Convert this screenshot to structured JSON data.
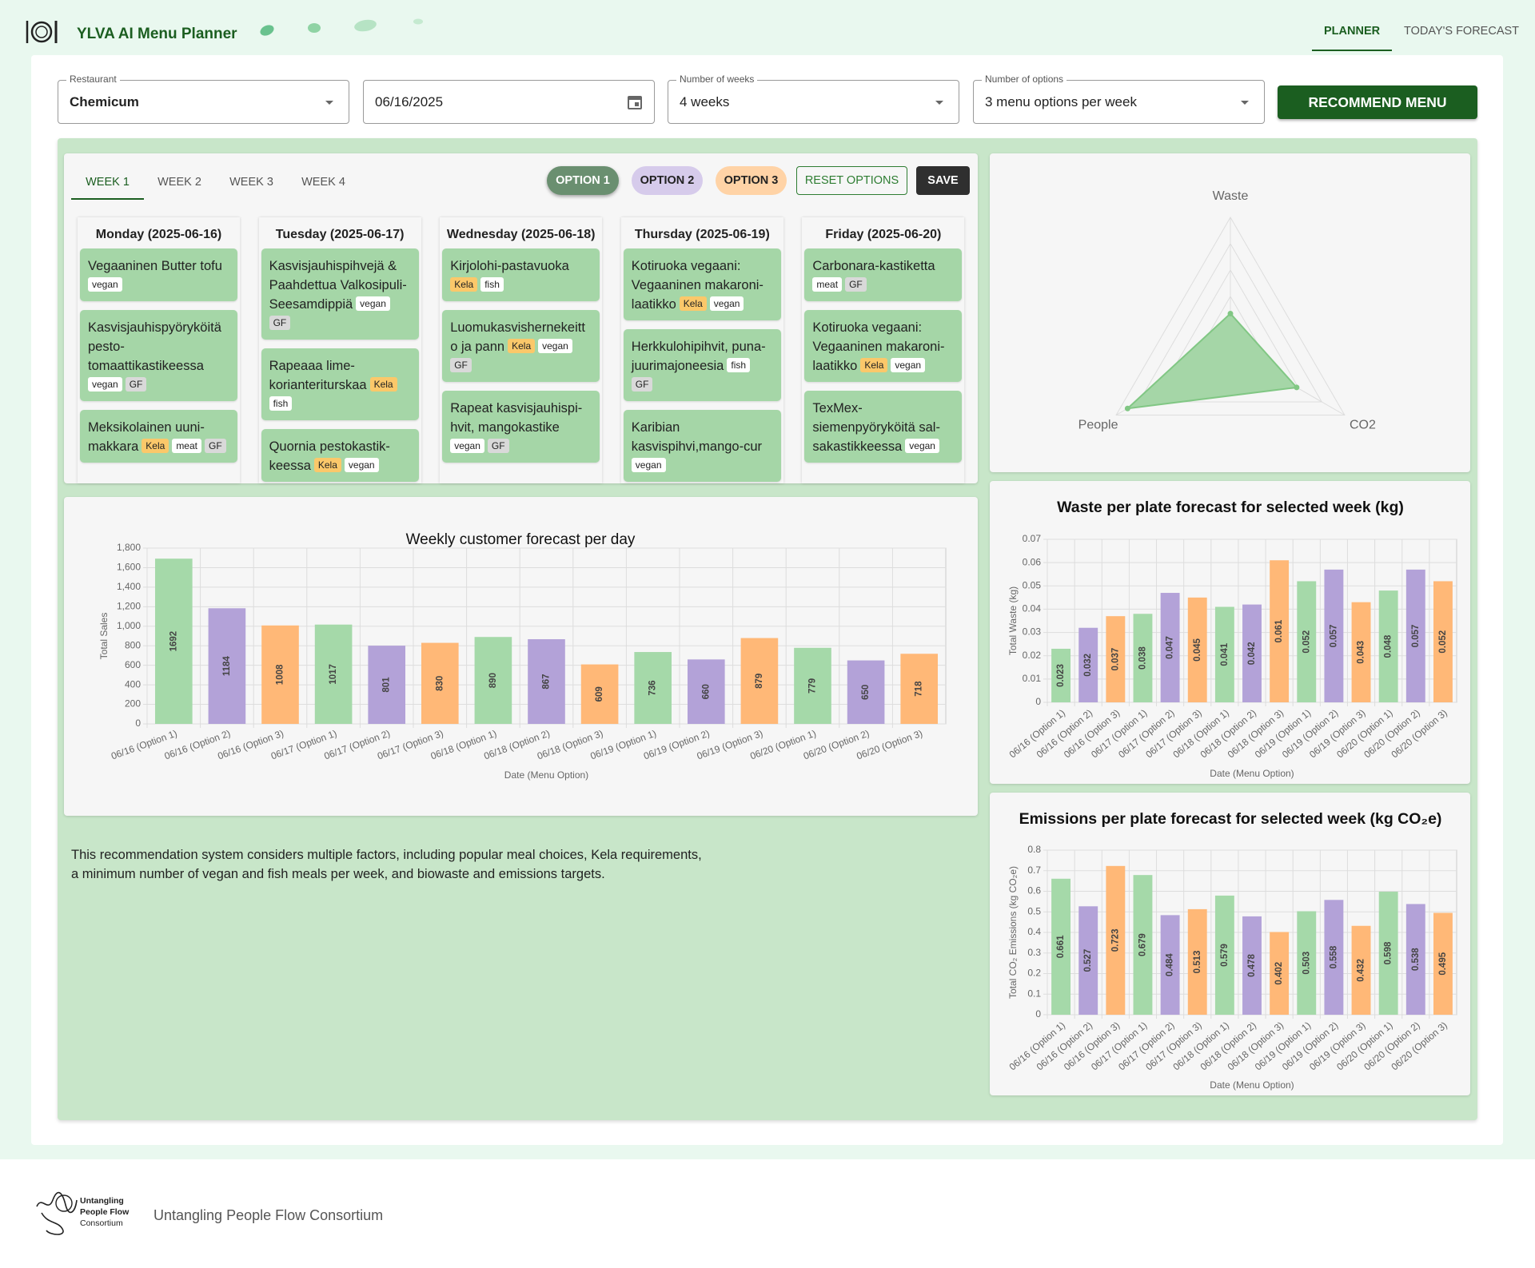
{
  "header": {
    "title": "YLVA AI Menu Planner",
    "nav": [
      "PLANNER",
      "TODAY'S FORECAST"
    ],
    "active_nav": 0
  },
  "controls": [
    {
      "label": "Restaurant",
      "value": "Chemicum",
      "kind": "select"
    },
    {
      "value": "06/16/2025",
      "kind": "date"
    },
    {
      "label": "Number of weeks",
      "value": "4 weeks",
      "kind": "select"
    },
    {
      "label": "Number of options",
      "value": "3 menu options per week",
      "kind": "select"
    }
  ],
  "recommend_button": "RECOMMEND MENU",
  "week_tabs": [
    "WEEK 1",
    "WEEK 2",
    "WEEK 3",
    "WEEK 4"
  ],
  "active_week": 0,
  "option_buttons": [
    {
      "text": "OPTION 1",
      "color": "#6a8f70",
      "text_color": "#ffffff"
    },
    {
      "text": "OPTION 2",
      "color": "#d6cbeb",
      "text_color": "#222222"
    },
    {
      "text": "OPTION 3",
      "color": "#ffd3a6",
      "text_color": "#222222"
    }
  ],
  "reset_button": "RESET OPTIONS",
  "save_button": "SAVE",
  "tag_colors": {
    "vegan": "#ffffff",
    "GF": "#d9d9d9",
    "Kela": "#fbc86a",
    "meat": "#ffffff",
    "fish": "#ffffff"
  },
  "days": [
    {
      "title": "Monday (2025-06-16)",
      "meals": [
        {
          "name": "Vegaaninen Butter tofu",
          "tags": [
            "vegan"
          ]
        },
        {
          "name": "Kasvisjauhispyöryköitä pesto-tomaattikastikeessa",
          "tags": [
            "vegan",
            "GF"
          ]
        },
        {
          "name": "Meksikolainen uuni-makkara",
          "tags": [
            "Kela",
            "meat",
            "GF"
          ]
        }
      ]
    },
    {
      "title": "Tuesday (2025-06-17)",
      "meals": [
        {
          "name": "Kasvisjauhispihvejä & Paahdettua Valkosipuli-Seesamdippiä",
          "tags": [
            "vegan",
            "GF"
          ]
        },
        {
          "name": "Rapeaaa lime-korianteriturskaa",
          "tags": [
            "Kela",
            "fish"
          ]
        },
        {
          "name": "Quornia pestokastik-keessa",
          "tags": [
            "Kela",
            "vegan"
          ]
        }
      ]
    },
    {
      "title": "Wednesday (2025-06-18)",
      "meals": [
        {
          "name": "Kirjolohi-pastavuoka",
          "tags": [
            "Kela",
            "fish"
          ]
        },
        {
          "name": "Luomukasvishernekeitto ja pann",
          "tags": [
            "Kela",
            "vegan",
            "GF"
          ]
        },
        {
          "name": "Rapeat kasvisjauhispi-hvit, mangokastike",
          "tags": [
            "vegan",
            "GF"
          ]
        }
      ]
    },
    {
      "title": "Thursday (2025-06-19)",
      "meals": [
        {
          "name": "Kotiruoka vegaani: Vegaaninen makaroni-laatikko",
          "tags": [
            "Kela",
            "vegan"
          ]
        },
        {
          "name": "Herkkulohipihvit, puna-juurimajoneesia",
          "tags": [
            "fish",
            "GF"
          ]
        },
        {
          "name": "Karibian kasvispihvi,mango-cur",
          "tags": [
            "vegan"
          ]
        }
      ]
    },
    {
      "title": "Friday (2025-06-20)",
      "meals": [
        {
          "name": "Carbonara-kastiketta",
          "tags": [
            "meat",
            "GF"
          ]
        },
        {
          "name": "Kotiruoka vegaani: Vegaaninen makaroni-laatikko",
          "tags": [
            "Kela",
            "vegan"
          ]
        },
        {
          "name": "TexMex-siemenpyöryköitä sal-sakastikkeessa",
          "tags": [
            "vegan"
          ]
        }
      ]
    }
  ],
  "chart_data": [
    {
      "type": "radar",
      "axes": [
        "Waste",
        "CO2",
        "People"
      ],
      "values": [
        0.27,
        0.58,
        0.9
      ],
      "rlim": [
        0,
        1
      ],
      "rings": 5,
      "color": "#a5d6a7",
      "line_color": "#81c784"
    },
    {
      "type": "bar",
      "title": "Weekly customer forecast per day",
      "x_label": "Date (Menu Option)",
      "y_label": "Total Sales",
      "categories": [
        "06/16 (Option 1)",
        "06/16 (Option 2)",
        "06/16 (Option 3)",
        "06/17 (Option 1)",
        "06/17 (Option 2)",
        "06/17 (Option 3)",
        "06/18 (Option 1)",
        "06/18 (Option 2)",
        "06/18 (Option 3)",
        "06/19 (Option 1)",
        "06/19 (Option 2)",
        "06/19 (Option 3)",
        "06/20 (Option 1)",
        "06/20 (Option 2)",
        "06/20 (Option 3)"
      ],
      "values": [
        1692,
        1184,
        1008,
        1017,
        801,
        830,
        890,
        867,
        609,
        736,
        660,
        879,
        779,
        650,
        718
      ],
      "colors": [
        "#a5d9a9",
        "#b3a2d8",
        "#ffb877",
        "#a5d9a9",
        "#b3a2d8",
        "#ffb877",
        "#a5d9a9",
        "#b3a2d8",
        "#ffb877",
        "#a5d9a9",
        "#b3a2d8",
        "#ffb877",
        "#a5d9a9",
        "#b3a2d8",
        "#ffb877"
      ],
      "ylim": [
        0,
        1800
      ],
      "yticks": [
        0,
        200,
        400,
        600,
        800,
        {
          "value": 1000,
          "label": "1,000"
        },
        {
          "value": 1200,
          "label": "1,200"
        },
        {
          "value": 1400,
          "label": "1,400"
        },
        {
          "value": 1600,
          "label": "1,600"
        },
        {
          "value": 1800,
          "label": "1,800"
        }
      ],
      "grid": true
    },
    {
      "type": "bar",
      "title": "Waste per plate forecast for selected week (kg)",
      "x_label": "Date (Menu Option)",
      "y_label": "Total Waste (kg)",
      "categories": [
        "06/16 (Option 1)",
        "06/16 (Option 2)",
        "06/16 (Option 3)",
        "06/17 (Option 1)",
        "06/17 (Option 2)",
        "06/17 (Option 3)",
        "06/18 (Option 1)",
        "06/18 (Option 2)",
        "06/18 (Option 3)",
        "06/19 (Option 1)",
        "06/19 (Option 2)",
        "06/19 (Option 3)",
        "06/20 (Option 1)",
        "06/20 (Option 2)",
        "06/20 (Option 3)"
      ],
      "values": [
        0.023,
        0.032,
        0.037,
        0.038,
        0.047,
        0.045,
        0.041,
        0.042,
        0.061,
        0.052,
        0.057,
        0.043,
        0.048,
        0.057,
        0.052
      ],
      "colors": [
        "#a5d9a9",
        "#b3a2d8",
        "#ffb877",
        "#a5d9a9",
        "#b3a2d8",
        "#ffb877",
        "#a5d9a9",
        "#b3a2d8",
        "#ffb877",
        "#a5d9a9",
        "#b3a2d8",
        "#ffb877",
        "#a5d9a9",
        "#b3a2d8",
        "#ffb877"
      ],
      "ylim": [
        0,
        0.07
      ],
      "yticks": [
        0,
        0.01,
        0.02,
        0.03,
        0.04,
        0.05,
        0.06,
        0.07
      ],
      "grid": true
    },
    {
      "type": "bar",
      "title": "Emissions per plate forecast for selected week (kg CO₂e)",
      "x_label": "Date (Menu Option)",
      "y_label": "Total CO₂ Emissions (kg CO₂e)",
      "categories": [
        "06/16 (Option 1)",
        "06/16 (Option 2)",
        "06/16 (Option 3)",
        "06/17 (Option 1)",
        "06/17 (Option 2)",
        "06/17 (Option 3)",
        "06/18 (Option 1)",
        "06/18 (Option 2)",
        "06/18 (Option 3)",
        "06/19 (Option 1)",
        "06/19 (Option 2)",
        "06/19 (Option 3)",
        "06/20 (Option 1)",
        "06/20 (Option 2)",
        "06/20 (Option 3)"
      ],
      "values": [
        0.661,
        0.527,
        0.723,
        0.679,
        0.484,
        0.513,
        0.579,
        0.478,
        0.402,
        0.503,
        0.558,
        0.432,
        0.598,
        0.538,
        0.495
      ],
      "colors": [
        "#a5d9a9",
        "#b3a2d8",
        "#ffb877",
        "#a5d9a9",
        "#b3a2d8",
        "#ffb877",
        "#a5d9a9",
        "#b3a2d8",
        "#ffb877",
        "#a5d9a9",
        "#b3a2d8",
        "#ffb877",
        "#a5d9a9",
        "#b3a2d8",
        "#ffb877"
      ],
      "ylim": [
        0,
        0.8
      ],
      "yticks": [
        0,
        0.1,
        0.2,
        0.3,
        0.4,
        0.5,
        0.6,
        0.7,
        0.8
      ],
      "grid": true
    }
  ],
  "note": [
    "This recommendation system considers multiple factors, including popular meal choices, Kela requirements,",
    "a minimum number of vegan and fish meals per week, and biowaste and emissions targets."
  ],
  "footer": {
    "logo_lines": [
      "Untangling",
      "People Flow",
      "Consortium"
    ],
    "text": "Untangling People Flow Consortium"
  }
}
